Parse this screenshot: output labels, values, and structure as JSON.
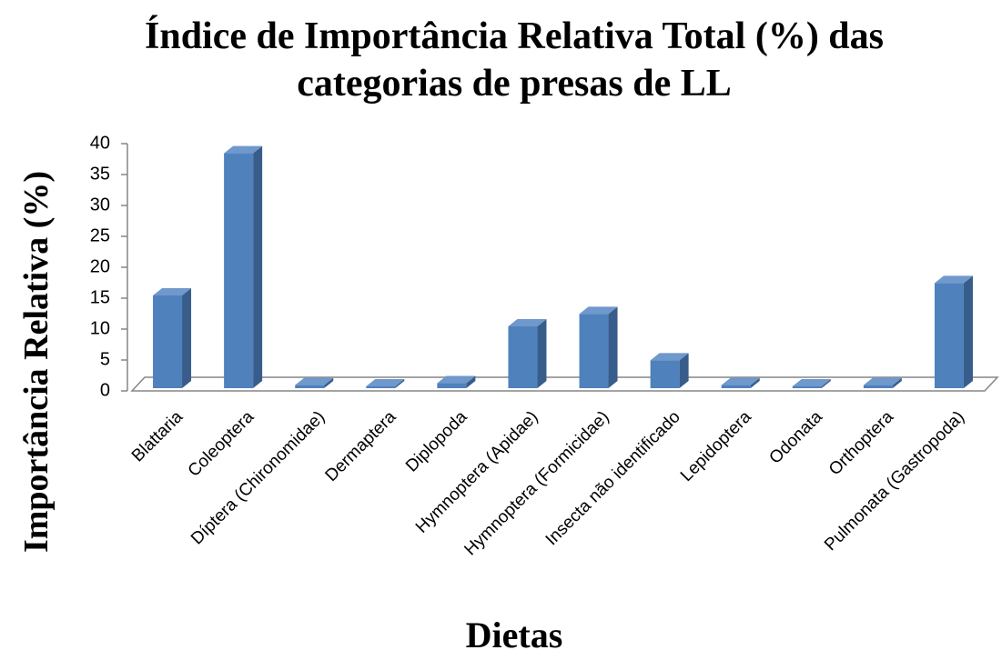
{
  "chart_data": {
    "type": "bar3d",
    "title": "Índice de Importância Relativa Total (%) das categorias de presas de LL",
    "y_label": "Importância Relativa (%)",
    "x_label": "Dietas",
    "categories": [
      "Blattaria",
      "Coleoptera",
      "Díptera (Chironomidae)",
      "Dermaptera",
      "Diplopoda",
      "Hymnoptera (Apidae)",
      "Hymnoptera (Formicidae)",
      "Insecta não identificado",
      "Lepidoptera",
      "Odonata",
      "Orthoptera",
      "Pulmonata (Gastropoda)"
    ],
    "values": [
      15,
      38,
      0.5,
      0.3,
      0.8,
      10,
      12,
      4.5,
      0.5,
      0.3,
      0.5,
      17
    ],
    "color": "#4f81bd",
    "ylim": [
      0,
      40
    ],
    "yticks": [
      0,
      5,
      10,
      15,
      20,
      25,
      30,
      35,
      40
    ],
    "grid": false
  }
}
